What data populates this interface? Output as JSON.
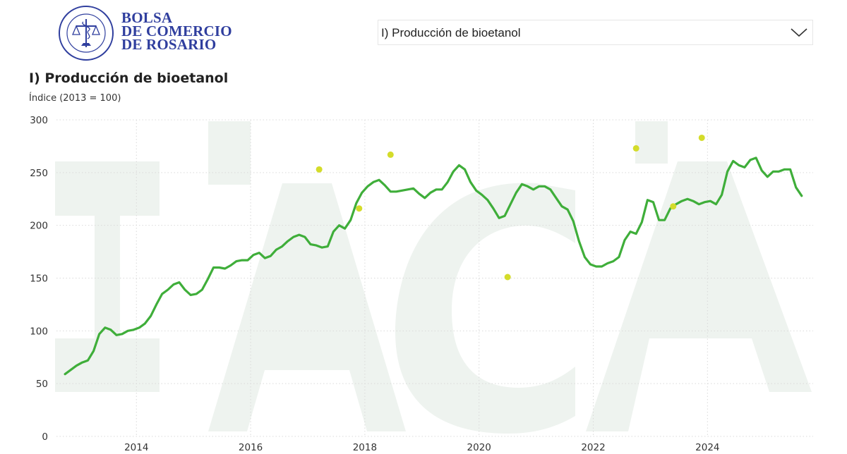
{
  "header": {
    "logo": {
      "brand_lines": [
        "BOLSA",
        "DE COMERCIO",
        "DE ROSARIO"
      ],
      "seal_text": "BOLSA DE COMERCIO DE ROSARIO",
      "color": "#2f3e9e"
    },
    "selector": {
      "selected": "I) Producción de bioetanol",
      "icon": "chevron-down-icon"
    }
  },
  "watermark": {
    "text": "IACA",
    "color": "#eef3ef"
  },
  "chart_data": {
    "type": "line",
    "title": "I) Producción de bioetanol",
    "subtitle": "Índice (2013 = 100)",
    "ylim": [
      0,
      300
    ],
    "yticks": [
      0,
      50,
      100,
      150,
      200,
      250,
      300
    ],
    "xlim": [
      2012.6,
      2025.85
    ],
    "xticks": [
      {
        "value": 2014,
        "label": "2014"
      },
      {
        "value": 2016,
        "label": "2016"
      },
      {
        "value": 2018,
        "label": "2018"
      },
      {
        "value": 2020,
        "label": "2020"
      },
      {
        "value": 2022,
        "label": "2022"
      },
      {
        "value": 2024,
        "label": "2024"
      }
    ],
    "grid": true,
    "colors": {
      "line": "#3fae3a",
      "markers": "#d4dc2a",
      "grid": "#d9d9d9"
    },
    "series": [
      {
        "values": [
          [
            2012.75,
            59
          ],
          [
            2012.85,
            63
          ],
          [
            2012.95,
            67
          ],
          [
            2013.05,
            70
          ],
          [
            2013.15,
            72
          ],
          [
            2013.25,
            81
          ],
          [
            2013.35,
            97
          ],
          [
            2013.45,
            103
          ],
          [
            2013.55,
            101
          ],
          [
            2013.65,
            96
          ],
          [
            2013.75,
            97
          ],
          [
            2013.85,
            100
          ],
          [
            2013.95,
            101
          ],
          [
            2014.05,
            103
          ],
          [
            2014.15,
            107
          ],
          [
            2014.25,
            114
          ],
          [
            2014.35,
            125
          ],
          [
            2014.45,
            135
          ],
          [
            2014.55,
            139
          ],
          [
            2014.65,
            144
          ],
          [
            2014.75,
            146
          ],
          [
            2014.85,
            139
          ],
          [
            2014.95,
            134
          ],
          [
            2015.05,
            135
          ],
          [
            2015.15,
            139
          ],
          [
            2015.25,
            149
          ],
          [
            2015.35,
            160
          ],
          [
            2015.45,
            160
          ],
          [
            2015.55,
            159
          ],
          [
            2015.65,
            162
          ],
          [
            2015.75,
            166
          ],
          [
            2015.85,
            167
          ],
          [
            2015.95,
            167
          ],
          [
            2016.05,
            172
          ],
          [
            2016.15,
            174
          ],
          [
            2016.25,
            169
          ],
          [
            2016.35,
            171
          ],
          [
            2016.45,
            177
          ],
          [
            2016.55,
            180
          ],
          [
            2016.65,
            185
          ],
          [
            2016.75,
            189
          ],
          [
            2016.85,
            191
          ],
          [
            2016.95,
            189
          ],
          [
            2017.05,
            182
          ],
          [
            2017.15,
            181
          ],
          [
            2017.25,
            179
          ],
          [
            2017.35,
            180
          ],
          [
            2017.45,
            194
          ],
          [
            2017.55,
            200
          ],
          [
            2017.65,
            197
          ],
          [
            2017.75,
            205
          ],
          [
            2017.85,
            221
          ],
          [
            2017.95,
            231
          ],
          [
            2018.05,
            237
          ],
          [
            2018.15,
            241
          ],
          [
            2018.25,
            243
          ],
          [
            2018.35,
            238
          ],
          [
            2018.45,
            232
          ],
          [
            2018.55,
            232
          ],
          [
            2018.65,
            233
          ],
          [
            2018.75,
            234
          ],
          [
            2018.85,
            235
          ],
          [
            2018.95,
            230
          ],
          [
            2019.05,
            226
          ],
          [
            2019.15,
            231
          ],
          [
            2019.25,
            234
          ],
          [
            2019.35,
            234
          ],
          [
            2019.45,
            241
          ],
          [
            2019.55,
            251
          ],
          [
            2019.65,
            257
          ],
          [
            2019.75,
            253
          ],
          [
            2019.85,
            241
          ],
          [
            2019.95,
            233
          ],
          [
            2020.05,
            229
          ],
          [
            2020.15,
            224
          ],
          [
            2020.25,
            216
          ],
          [
            2020.35,
            207
          ],
          [
            2020.45,
            209
          ],
          [
            2020.55,
            220
          ],
          [
            2020.65,
            231
          ],
          [
            2020.75,
            239
          ],
          [
            2020.85,
            237
          ],
          [
            2020.95,
            234
          ],
          [
            2021.05,
            237
          ],
          [
            2021.15,
            237
          ],
          [
            2021.25,
            234
          ],
          [
            2021.35,
            226
          ],
          [
            2021.45,
            218
          ],
          [
            2021.55,
            215
          ],
          [
            2021.65,
            204
          ],
          [
            2021.75,
            185
          ],
          [
            2021.85,
            170
          ],
          [
            2021.95,
            163
          ],
          [
            2022.05,
            161
          ],
          [
            2022.15,
            161
          ],
          [
            2022.25,
            164
          ],
          [
            2022.35,
            166
          ],
          [
            2022.45,
            170
          ],
          [
            2022.55,
            186
          ],
          [
            2022.65,
            194
          ],
          [
            2022.75,
            192
          ],
          [
            2022.85,
            203
          ],
          [
            2022.95,
            224
          ],
          [
            2023.05,
            222
          ],
          [
            2023.15,
            205
          ],
          [
            2023.25,
            205
          ],
          [
            2023.35,
            216
          ],
          [
            2023.45,
            220
          ],
          [
            2023.55,
            223
          ],
          [
            2023.65,
            225
          ],
          [
            2023.75,
            223
          ],
          [
            2023.85,
            220
          ],
          [
            2023.95,
            222
          ],
          [
            2024.05,
            223
          ],
          [
            2024.15,
            220
          ],
          [
            2024.25,
            229
          ],
          [
            2024.35,
            251
          ],
          [
            2024.45,
            261
          ],
          [
            2024.55,
            257
          ],
          [
            2024.65,
            255
          ],
          [
            2024.75,
            262
          ],
          [
            2024.85,
            264
          ],
          [
            2024.95,
            252
          ],
          [
            2025.05,
            246
          ],
          [
            2025.15,
            251
          ],
          [
            2025.25,
            251
          ],
          [
            2025.35,
            253
          ],
          [
            2025.45,
            253
          ],
          [
            2025.55,
            236
          ],
          [
            2025.65,
            228
          ]
        ]
      }
    ],
    "markers": [
      [
        2017.2,
        253
      ],
      [
        2017.9,
        216
      ],
      [
        2018.45,
        267
      ],
      [
        2020.5,
        151
      ],
      [
        2022.75,
        273
      ],
      [
        2023.4,
        218
      ],
      [
        2023.9,
        283
      ]
    ]
  }
}
